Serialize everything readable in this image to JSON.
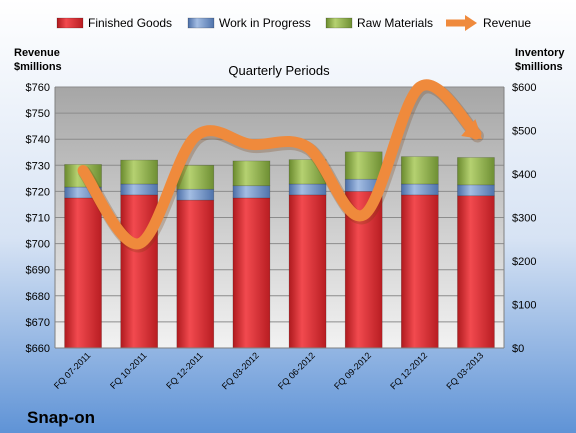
{
  "chart_data": {
    "type": "bar",
    "title": "Quarterly Periods",
    "company": "Snap-on",
    "y_left_label": [
      "Revenue",
      "$millions"
    ],
    "y_right_label": [
      "Inventory",
      "$millions"
    ],
    "categories": [
      "FQ 07-2011",
      "FQ 10-2011",
      "FQ 12-2011",
      "FQ 03-2012",
      "FQ 06-2012",
      "FQ 09-2012",
      "FQ 12-2012",
      "FQ 03-2013"
    ],
    "left_axis": {
      "min": 660,
      "max": 760,
      "step": 10,
      "ticks": [
        "$660",
        "$670",
        "$680",
        "$690",
        "$700",
        "$710",
        "$720",
        "$730",
        "$740",
        "$750",
        "$760"
      ]
    },
    "right_axis": {
      "min": 0,
      "max": 600,
      "step": 100,
      "ticks": [
        "$0",
        "$100",
        "$200",
        "$300",
        "$400",
        "$500",
        "$600"
      ]
    },
    "legend_position": "top",
    "series": [
      {
        "name": "Finished Goods",
        "kind": "stacked-bar",
        "axis": "right",
        "color": "#e0282e",
        "values": [
          345,
          352,
          340,
          345,
          352,
          360,
          352,
          350
        ]
      },
      {
        "name": "Work in Progress",
        "kind": "stacked-bar",
        "axis": "right",
        "color": "#6d8fc4",
        "values": [
          25,
          25,
          25,
          28,
          25,
          28,
          25,
          25
        ]
      },
      {
        "name": "Raw Materials",
        "kind": "stacked-bar",
        "axis": "right",
        "color": "#8fb04c",
        "values": [
          52,
          55,
          55,
          57,
          56,
          63,
          63,
          63
        ]
      },
      {
        "name": "Revenue",
        "kind": "line",
        "axis": "left",
        "color": "#ef8a3c",
        "values": [
          728,
          700,
          741,
          738,
          737,
          711,
          760,
          742
        ]
      }
    ]
  }
}
